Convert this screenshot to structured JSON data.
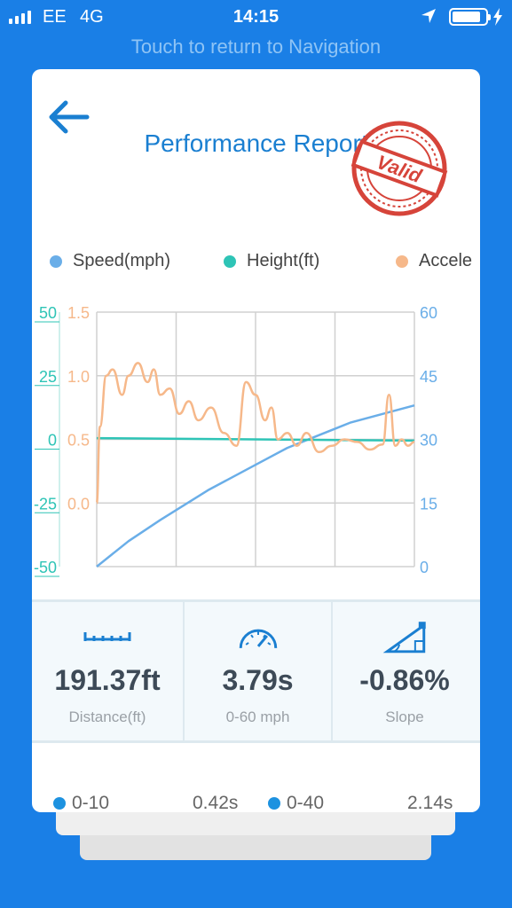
{
  "status_bar": {
    "carrier": "EE",
    "network": "4G",
    "time": "14:15",
    "battery_level": 0.85
  },
  "nav_banner": "Touch to return to Navigation",
  "report": {
    "title": "Performance Report",
    "stamp_text": "Valid",
    "back_icon": "arrow-left-icon",
    "legend": [
      {
        "label": "Speed(mph)",
        "color": "#6aaee8"
      },
      {
        "label": "Height(ft)",
        "color": "#2ec4b6"
      },
      {
        "label": "Accele",
        "color": "#f6b88a"
      }
    ]
  },
  "chart_data": {
    "type": "line",
    "series": [
      {
        "name": "Speed(mph)",
        "axis": "right",
        "color": "#6aaee8",
        "x": [
          0,
          0.1,
          0.2,
          0.35,
          0.5,
          0.6,
          0.7,
          0.8,
          0.9,
          1.0
        ],
        "values": [
          0,
          6,
          11,
          18,
          24,
          28,
          31,
          34,
          36,
          38
        ]
      },
      {
        "name": "Height(ft)",
        "axis": "left_outer",
        "color": "#2ec4b6",
        "x": [
          0,
          1
        ],
        "values": [
          0.5,
          -0.5
        ]
      },
      {
        "name": "Accele",
        "axis": "left_inner",
        "color": "#f6b88a",
        "x": [
          0,
          0.01,
          0.03,
          0.05,
          0.08,
          0.1,
          0.13,
          0.16,
          0.18,
          0.2,
          0.23,
          0.26,
          0.29,
          0.32,
          0.36,
          0.4,
          0.44,
          0.47,
          0.5,
          0.53,
          0.55,
          0.57,
          0.6,
          0.63,
          0.66,
          0.7,
          0.74,
          0.78,
          0.82,
          0.86,
          0.9,
          0.92,
          0.94,
          0.96,
          0.98,
          1.0
        ],
        "values": [
          0.0,
          0.6,
          1.0,
          1.05,
          0.85,
          1.0,
          1.1,
          0.95,
          1.05,
          0.85,
          0.9,
          0.7,
          0.8,
          0.65,
          0.75,
          0.55,
          0.45,
          0.95,
          0.85,
          0.65,
          0.75,
          0.5,
          0.55,
          0.45,
          0.55,
          0.4,
          0.45,
          0.5,
          0.48,
          0.42,
          0.46,
          0.85,
          0.45,
          0.5,
          0.45,
          0.48
        ]
      }
    ],
    "axes": {
      "left_outer": {
        "range": [
          -50,
          50
        ],
        "ticks": [
          "50",
          "25",
          "0",
          "-25",
          "-50"
        ],
        "color": "#2ec4b6"
      },
      "left_inner": {
        "range": [
          0.0,
          1.5
        ],
        "ticks": [
          "1.5",
          "1.0",
          "0.5",
          "0.0"
        ],
        "color": "#f6b88a"
      },
      "right": {
        "range": [
          0,
          60
        ],
        "ticks": [
          "60",
          "45",
          "30",
          "15",
          "0"
        ],
        "color": "#6aaee8"
      }
    },
    "grid": true
  },
  "stats": [
    {
      "icon": "ruler-icon",
      "value": "191.37ft",
      "label": "Distance(ft)"
    },
    {
      "icon": "speedometer-icon",
      "value": "3.79s",
      "label": "0-60 mph"
    },
    {
      "icon": "slope-icon",
      "value": "-0.86%",
      "label": "Slope"
    }
  ],
  "splits": [
    {
      "label": "0-10",
      "value": "0.42s"
    },
    {
      "label": "0-40",
      "value": "2.14s"
    }
  ]
}
